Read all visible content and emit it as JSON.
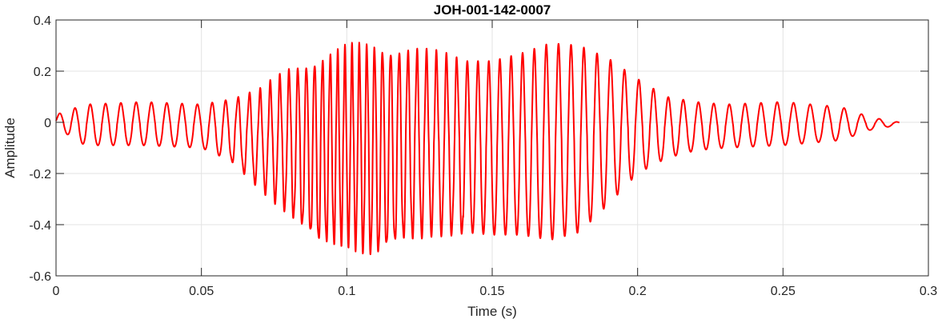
{
  "chart_data": {
    "type": "line",
    "title": "JOH-001-142-0007",
    "xlabel": "Time (s)",
    "ylabel": "Amplitude",
    "xlim": [
      0,
      0.3
    ],
    "ylim": [
      -0.6,
      0.4
    ],
    "xticks": [
      0,
      0.05,
      0.1,
      0.15,
      0.2,
      0.25,
      0.3
    ],
    "xtick_labels": [
      "0",
      "0.05",
      "0.1",
      "0.15",
      "0.2",
      "0.25",
      "0.3"
    ],
    "yticks": [
      -0.6,
      -0.4,
      -0.2,
      0,
      0.2,
      0.4
    ],
    "ytick_labels": [
      "-0.6",
      "-0.4",
      "-0.2",
      "0",
      "0.2",
      "0.4"
    ],
    "grid": true,
    "line_color": "#ff0000",
    "x_end": 0.29,
    "envelope": {
      "t": [
        0,
        0.01,
        0.03,
        0.05,
        0.06,
        0.07,
        0.08,
        0.09,
        0.1,
        0.11,
        0.12,
        0.13,
        0.14,
        0.15,
        0.16,
        0.17,
        0.18,
        0.19,
        0.2,
        0.21,
        0.22,
        0.23,
        0.25,
        0.27,
        0.28,
        0.29
      ],
      "upper": [
        0.03,
        0.07,
        0.08,
        0.07,
        0.09,
        0.12,
        0.2,
        0.25,
        0.28,
        0.3,
        0.28,
        0.26,
        0.24,
        0.24,
        0.27,
        0.31,
        0.3,
        0.25,
        0.17,
        0.1,
        0.08,
        0.07,
        0.08,
        0.06,
        0.02,
        0.0
      ],
      "lower": [
        -0.02,
        -0.09,
        -0.09,
        -0.1,
        -0.15,
        -0.25,
        -0.35,
        -0.47,
        -0.46,
        -0.52,
        -0.45,
        -0.42,
        -0.43,
        -0.44,
        -0.44,
        -0.46,
        -0.43,
        -0.32,
        -0.2,
        -0.14,
        -0.11,
        -0.1,
        -0.09,
        -0.07,
        -0.03,
        -0.01
      ]
    }
  }
}
